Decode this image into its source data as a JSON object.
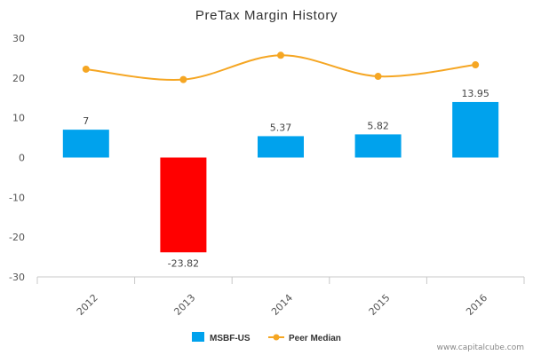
{
  "chart_data": {
    "type": "bar",
    "title": "PreTax Margin History",
    "categories": [
      "2012",
      "2013",
      "2014",
      "2015",
      "2016"
    ],
    "ylim": [
      -30,
      30
    ],
    "yticks": [
      30,
      20,
      10,
      0,
      -10,
      -20,
      -30
    ],
    "grid": false,
    "legend_position": "bottom-center",
    "series": [
      {
        "name": "MSBF-US",
        "type": "bar",
        "values": [
          7,
          -23.82,
          5.37,
          5.82,
          13.95
        ],
        "data_labels": [
          "7",
          "-23.82",
          "5.37",
          "5.82",
          "13.95"
        ],
        "color": "#00a2ed",
        "negative_color": "#ff0000"
      },
      {
        "name": "Peer Median",
        "type": "line",
        "values": [
          22.2,
          19.6,
          25.7,
          20.4,
          23.3
        ],
        "color": "#f5a623"
      }
    ]
  },
  "footer": {
    "credit": "www.capitalcube.com"
  }
}
